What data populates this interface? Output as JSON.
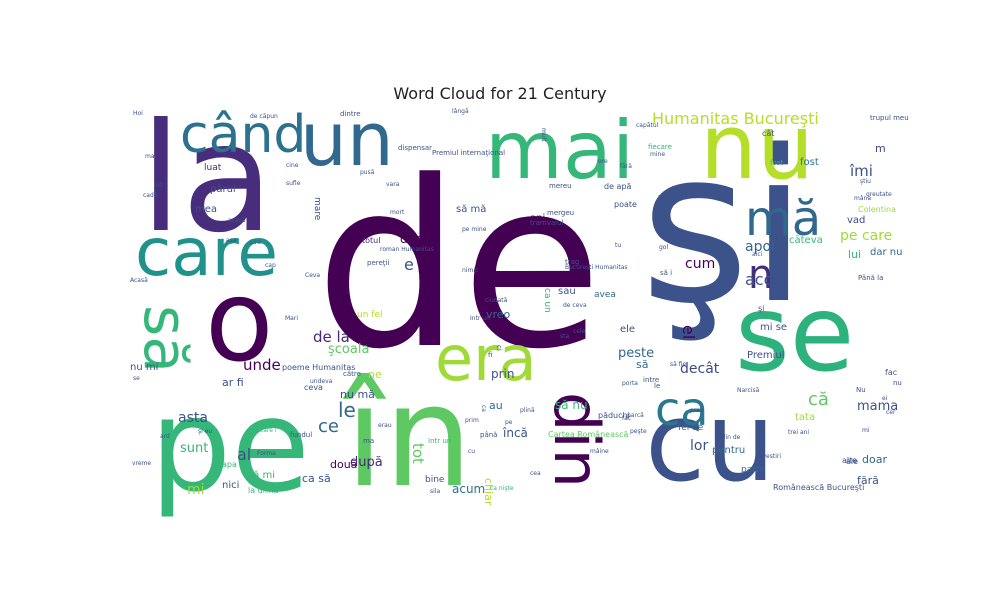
{
  "chart_data": {
    "type": "wordcloud",
    "title": "Word Cloud for 21 Century",
    "palette": [
      "#440154",
      "#482878",
      "#3e4989",
      "#31688e",
      "#26828e",
      "#1f9e89",
      "#35b779",
      "#6ece58",
      "#b5de2b",
      "#fde725"
    ],
    "words": [
      {
        "text": "de",
        "color": "#440154"
      },
      {
        "text": "şi",
        "color": "#3b528b"
      },
      {
        "text": "la",
        "color": "#472d7b"
      },
      {
        "text": "în",
        "color": "#5ec962"
      },
      {
        "text": "pe",
        "color": "#35b779"
      },
      {
        "text": "cu",
        "color": "#3b528b"
      },
      {
        "text": "o",
        "color": "#440154"
      },
      {
        "text": "se",
        "color": "#2db27d"
      },
      {
        "text": "nu",
        "color": "#b5de2b"
      },
      {
        "text": "mai",
        "color": "#35b779"
      },
      {
        "text": "un",
        "color": "#31688e"
      },
      {
        "text": "care",
        "color": "#21918c"
      },
      {
        "text": "era",
        "color": "#a0da39"
      },
      {
        "text": "din",
        "color": "#440154"
      },
      {
        "text": "să",
        "color": "#35b779"
      },
      {
        "text": "când",
        "color": "#2c728e"
      },
      {
        "text": "ca",
        "color": "#2a788e"
      },
      {
        "text": "mă",
        "color": "#31688e"
      },
      {
        "text": "n",
        "color": "#472d7b"
      },
      {
        "text": "Humanitas Bucureşti",
        "color": "#b5de2b"
      },
      {
        "text": "îmi",
        "color": "#3b528b"
      },
      {
        "text": "m",
        "color": "#3e4989"
      },
      {
        "text": "fost",
        "color": "#2c728e"
      },
      {
        "text": "pe care",
        "color": "#a0da39"
      },
      {
        "text": "vad",
        "color": "#3e4989"
      },
      {
        "text": "lui",
        "color": "#35b779"
      },
      {
        "text": "dar nu",
        "color": "#31688e"
      },
      {
        "text": "apoi",
        "color": "#31688e"
      },
      {
        "text": "acolo",
        "color": "#3b528b"
      },
      {
        "text": "cum",
        "color": "#440154"
      },
      {
        "text": "mi se",
        "color": "#3b528b"
      },
      {
        "text": "el",
        "color": "#440154"
      },
      {
        "text": "peste",
        "color": "#31688e"
      },
      {
        "text": "decât",
        "color": "#3e4989"
      },
      {
        "text": "să",
        "color": "#31688e"
      },
      {
        "text": "că",
        "color": "#5ec962"
      },
      {
        "text": "mama",
        "color": "#3b528b"
      },
      {
        "text": "lor",
        "color": "#3b528b"
      },
      {
        "text": "tata",
        "color": "#a0da39"
      },
      {
        "text": "de la",
        "color": "#482878"
      },
      {
        "text": "unde",
        "color": "#440154"
      },
      {
        "text": "şcoala",
        "color": "#5ec962"
      },
      {
        "text": "le",
        "color": "#31688e"
      },
      {
        "text": "ce",
        "color": "#31688e"
      },
      {
        "text": "tot",
        "color": "#5ec962"
      },
      {
        "text": "asta",
        "color": "#3b528b"
      },
      {
        "text": "al",
        "color": "#3b528b"
      },
      {
        "text": "sunt",
        "color": "#35b779"
      },
      {
        "text": "mi",
        "color": "#a0da39"
      },
      {
        "text": "după",
        "color": "#482878"
      },
      {
        "text": "două",
        "color": "#440154"
      },
      {
        "text": "ca să",
        "color": "#3b528b"
      },
      {
        "text": "acum",
        "color": "#2c728e"
      },
      {
        "text": "încă",
        "color": "#3b528b"
      },
      {
        "text": "chiar",
        "color": "#b5de2b"
      },
      {
        "text": "dar",
        "color": "#440154"
      },
      {
        "text": "e",
        "color": "#3b528b"
      },
      {
        "text": "prin",
        "color": "#3b528b"
      },
      {
        "text": "mea",
        "color": "#3b528b"
      },
      {
        "text": "părul",
        "color": "#3b528b"
      },
      {
        "text": "luat",
        "color": "#482878"
      },
      {
        "text": "mare",
        "color": "#3b528b"
      },
      {
        "text": "ani",
        "color": "#440154"
      },
      {
        "text": "să mă",
        "color": "#3b528b"
      },
      {
        "text": "totul",
        "color": "#482878"
      },
      {
        "text": "vreo",
        "color": "#31688e"
      },
      {
        "text": "nu mă",
        "color": "#3b528b"
      },
      {
        "text": "au",
        "color": "#31688e"
      },
      {
        "text": "sau",
        "color": "#3b528b"
      },
      {
        "text": "avea",
        "color": "#31688e"
      },
      {
        "text": "ele",
        "color": "#3b528b"
      },
      {
        "text": "ar fi",
        "color": "#3b528b"
      },
      {
        "text": "nu mi",
        "color": "#3b528b"
      },
      {
        "text": "ne",
        "color": "#b5de2b"
      },
      {
        "text": "să nu",
        "color": "#35b779"
      },
      {
        "text": "pentru",
        "color": "#31688e"
      },
      {
        "text": "parte",
        "color": "#31688e"
      },
      {
        "text": "fără",
        "color": "#3b528b"
      },
      {
        "text": "doar",
        "color": "#31688e"
      },
      {
        "text": "Premiul",
        "color": "#3b528b"
      },
      {
        "text": "fel de",
        "color": "#31688e"
      },
      {
        "text": "nici",
        "color": "#3b528b"
      },
      {
        "text": "să mi",
        "color": "#35b779"
      },
      {
        "text": "la urmă",
        "color": "#35b779"
      },
      {
        "text": "apa",
        "color": "#35b779"
      },
      {
        "text": "bine",
        "color": "#3b528b"
      },
      {
        "text": "Cartea Românească",
        "color": "#5ec962"
      },
      {
        "text": "Românească Bucureşti",
        "color": "#3b528b"
      },
      {
        "text": "poeme Humanitas",
        "color": "#3b528b"
      },
      {
        "text": "cāteva",
        "color": "#35b779"
      },
      {
        "text": "Colentina",
        "color": "#a0da39"
      },
      {
        "text": "fac",
        "color": "#3b528b"
      },
      {
        "text": "poate",
        "color": "#3b528b"
      },
      {
        "text": "de apă",
        "color": "#3b528b"
      },
      {
        "text": "mergeu",
        "color": "#3b528b"
      },
      {
        "text": "trag",
        "color": "#3b528b"
      },
      {
        "text": "un fel",
        "color": "#b5de2b"
      },
      {
        "text": "Premiul internaţional",
        "color": "#3b528b"
      },
      {
        "text": "tramvaiul",
        "color": "#3b528b"
      },
      {
        "text": "roman Humanitas",
        "color": "#3b528b"
      },
      {
        "text": "pereţii",
        "color": "#3b528b"
      },
      {
        "text": "ceva",
        "color": "#3b528b"
      },
      {
        "text": "fiecare",
        "color": "#35b779"
      },
      {
        "text": "Până la",
        "color": "#3b528b"
      },
      {
        "text": "dispensar",
        "color": "#3b528b"
      },
      {
        "text": "dintre",
        "color": "#3b528b"
      },
      {
        "text": "cât",
        "color": "#3b528b"
      },
      {
        "text": "capătul",
        "color": "#3b528b"
      },
      {
        "text": "trupul meu",
        "color": "#3b528b"
      },
      {
        "text": "mult",
        "color": "#3b528b"
      },
      {
        "text": "lângă",
        "color": "#3b528b"
      },
      {
        "text": "de căpun",
        "color": "#3b528b"
      },
      {
        "text": "fost",
        "color": "#35b779"
      },
      {
        "text": "Intr un",
        "color": "#3b528b"
      },
      {
        "text": "mi",
        "color": "#3b528b"
      },
      {
        "text": "către",
        "color": "#3b528b"
      },
      {
        "text": "fundul",
        "color": "#3b528b"
      },
      {
        "text": "păduchi",
        "color": "#3b528b"
      },
      {
        "text": "intre",
        "color": "#3b528b"
      },
      {
        "text": "până",
        "color": "#3b528b"
      },
      {
        "text": "ca nişte",
        "color": "#35b779"
      },
      {
        "text": "care i",
        "color": "#35b779"
      },
      {
        "text": "vreme",
        "color": "#3b528b"
      },
      {
        "text": "plin de",
        "color": "#3b528b"
      },
      {
        "text": "trei ani",
        "color": "#3b528b"
      },
      {
        "text": "mâna",
        "color": "#3b528b"
      },
      {
        "text": "greutate",
        "color": "#3b528b"
      },
      {
        "text": "undeva",
        "color": "#3b528b"
      },
      {
        "text": "alte",
        "color": "#3b528b"
      },
      {
        "text": "ale",
        "color": "#3b528b"
      },
      {
        "text": "Forma",
        "color": "#3b528b"
      },
      {
        "text": "ma",
        "color": "#3b528b"
      },
      {
        "text": "Intr un",
        "color": "#35b779"
      },
      {
        "text": "povestiri",
        "color": "#3b528b"
      },
      {
        "text": "Narcisă",
        "color": "#3b528b"
      },
      {
        "text": "Nu",
        "color": "#3b528b"
      },
      {
        "text": "ilna",
        "color": "#3b528b"
      },
      {
        "text": "Acasă",
        "color": "#3b528b"
      },
      {
        "text": "Ceva",
        "color": "#3b528b"
      },
      {
        "text": "de ceva",
        "color": "#3b528b"
      },
      {
        "text": "Mari",
        "color": "#3b528b"
      },
      {
        "text": "plină",
        "color": "#3b528b"
      },
      {
        "text": "mine",
        "color": "#3b528b"
      },
      {
        "text": "se",
        "color": "#3b528b"
      },
      {
        "text": "aici",
        "color": "#3b528b"
      },
      {
        "text": "şi",
        "color": "#3b528b"
      },
      {
        "text": "nu",
        "color": "#3b528b"
      },
      {
        "text": "le",
        "color": "#3b528b"
      },
      {
        "text": "ca",
        "color": "#3b528b"
      },
      {
        "text": "ci",
        "color": "#3b528b"
      },
      {
        "text": "fi",
        "color": "#3b528b"
      },
      {
        "text": "gol",
        "color": "#3b528b"
      },
      {
        "text": "iau",
        "color": "#3b528b"
      },
      {
        "text": "ard",
        "color": "#3b528b"
      },
      {
        "text": "cadă",
        "color": "#3b528b"
      },
      {
        "text": "jos",
        "color": "#3b528b"
      },
      {
        "text": "mai",
        "color": "#3b528b"
      },
      {
        "text": "pe mine",
        "color": "#3b528b"
      },
      {
        "text": "fără",
        "color": "#3b528b"
      },
      {
        "text": "pusă",
        "color": "#3b528b"
      },
      {
        "text": "vara",
        "color": "#3b528b"
      },
      {
        "text": "Lire",
        "color": "#3b528b"
      },
      {
        "text": "aşa",
        "color": "#3b528b"
      },
      {
        "text": "cine",
        "color": "#3b528b"
      },
      {
        "text": "ore",
        "color": "#3b528b"
      },
      {
        "text": "peşte",
        "color": "#3b528b"
      },
      {
        "text": "fac",
        "color": "#3b528b"
      },
      {
        "text": "sila",
        "color": "#3b528b"
      },
      {
        "text": "tu",
        "color": "#3b528b"
      },
      {
        "text": "sta",
        "color": "#3b528b"
      },
      {
        "text": "prim",
        "color": "#3b528b"
      },
      {
        "text": "mâine",
        "color": "#3b528b"
      },
      {
        "text": "cea",
        "color": "#3b528b"
      },
      {
        "text": "nimic",
        "color": "#3b528b"
      },
      {
        "text": "cap",
        "color": "#3b528b"
      },
      {
        "text": "Bucureşti Humanitas",
        "color": "#3b528b"
      },
      {
        "text": "mereu",
        "color": "#3b528b"
      },
      {
        "text": "şi eu",
        "color": "#3b528b"
      },
      {
        "text": "prea",
        "color": "#3b528b"
      },
      {
        "text": "ca un",
        "color": "#35b779"
      },
      {
        "text": "pe",
        "color": "#3b528b"
      },
      {
        "text": "Hoi",
        "color": "#3b528b"
      },
      {
        "text": "cu",
        "color": "#3b528b"
      },
      {
        "text": "cele",
        "color": "#3b528b"
      },
      {
        "text": "porta",
        "color": "#3b528b"
      },
      {
        "text": "parcă",
        "color": "#3b528b"
      },
      {
        "text": "să fie",
        "color": "#3b528b"
      },
      {
        "text": "erau",
        "color": "#3b528b"
      },
      {
        "text": "sufle",
        "color": "#3b528b"
      },
      {
        "text": "mort",
        "color": "#3b528b"
      },
      {
        "text": "acasă",
        "color": "#3b528b"
      },
      {
        "text": "ciudată",
        "color": "#3b528b"
      },
      {
        "text": "ştiu",
        "color": "#3b528b"
      },
      {
        "text": "cer",
        "color": "#3b528b"
      },
      {
        "text": "ei",
        "color": "#3b528b"
      },
      {
        "text": "să i",
        "color": "#3b528b"
      }
    ]
  }
}
